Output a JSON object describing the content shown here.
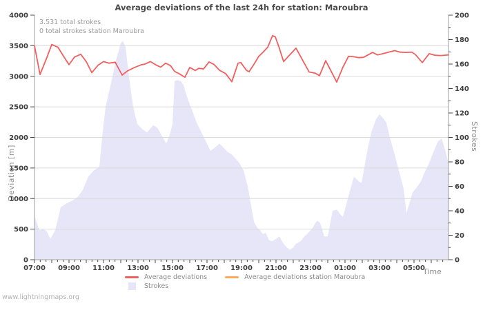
{
  "page": {
    "watermark": "www.lightningmaps.org"
  },
  "chart_data": {
    "type": "line+area",
    "title": "Average deviations of the last 24h for station: Maroubra",
    "annotations": [
      "3.531 total strokes",
      "0 total strokes station Maroubra"
    ],
    "x_axis": {
      "label": "Time",
      "start": "07:00",
      "hours_span": 24,
      "minor_tick_minutes": 20,
      "tick_hours": [
        0,
        2,
        4,
        6,
        8,
        10,
        12,
        14,
        16,
        18,
        20,
        22
      ],
      "tick_labels": [
        "07:00",
        "09:00",
        "11:00",
        "13:00",
        "15:00",
        "17:00",
        "19:00",
        "21:00",
        "23:00",
        "01:00",
        "03:00",
        "05:00"
      ]
    },
    "y_left": {
      "label": "Deviation [m]",
      "min": 0,
      "max": 4000,
      "tick_step": 500,
      "grid_step": 500
    },
    "y_right": {
      "label": "Strokes",
      "min": 0,
      "max": 200,
      "tick_step": 20,
      "minor_step": 10
    },
    "colors": {
      "grid": "#d9d9d9",
      "axis": "#9e9e9e",
      "tick": "#444444",
      "background": "#ffffff"
    },
    "series": [
      {
        "name": "Average deviations",
        "type": "line",
        "axis": "left",
        "color": "#f25f5f",
        "points": [
          [
            0,
            3500
          ],
          [
            0.32,
            3030
          ],
          [
            0.68,
            3280
          ],
          [
            1,
            3520
          ],
          [
            1.36,
            3475
          ],
          [
            1.68,
            3330
          ],
          [
            2,
            3190
          ],
          [
            2.32,
            3315
          ],
          [
            2.68,
            3360
          ],
          [
            3,
            3240
          ],
          [
            3.32,
            3060
          ],
          [
            3.68,
            3180
          ],
          [
            4,
            3240
          ],
          [
            4.32,
            3215
          ],
          [
            4.68,
            3230
          ],
          [
            5.08,
            3020
          ],
          [
            5.4,
            3090
          ],
          [
            5.8,
            3145
          ],
          [
            6.16,
            3185
          ],
          [
            6.4,
            3200
          ],
          [
            6.72,
            3240
          ],
          [
            7.08,
            3180
          ],
          [
            7.32,
            3150
          ],
          [
            7.6,
            3215
          ],
          [
            7.88,
            3175
          ],
          [
            8.12,
            3080
          ],
          [
            8.4,
            3040
          ],
          [
            8.72,
            2985
          ],
          [
            9,
            3145
          ],
          [
            9.32,
            3095
          ],
          [
            9.52,
            3130
          ],
          [
            9.8,
            3120
          ],
          [
            10.12,
            3235
          ],
          [
            10.4,
            3195
          ],
          [
            10.72,
            3100
          ],
          [
            11.08,
            3045
          ],
          [
            11.44,
            2910
          ],
          [
            11.8,
            3215
          ],
          [
            11.96,
            3225
          ],
          [
            12.28,
            3100
          ],
          [
            12.44,
            3075
          ],
          [
            12.72,
            3195
          ],
          [
            13,
            3325
          ],
          [
            13.2,
            3380
          ],
          [
            13.52,
            3475
          ],
          [
            13.8,
            3665
          ],
          [
            13.96,
            3645
          ],
          [
            14.2,
            3455
          ],
          [
            14.44,
            3240
          ],
          [
            14.76,
            3340
          ],
          [
            15.16,
            3460
          ],
          [
            15.6,
            3235
          ],
          [
            15.92,
            3070
          ],
          [
            16.28,
            3050
          ],
          [
            16.52,
            3010
          ],
          [
            16.88,
            3255
          ],
          [
            17.2,
            3080
          ],
          [
            17.52,
            2905
          ],
          [
            17.88,
            3150
          ],
          [
            18.2,
            3325
          ],
          [
            18.52,
            3320
          ],
          [
            18.8,
            3305
          ],
          [
            19.08,
            3310
          ],
          [
            19.4,
            3360
          ],
          [
            19.6,
            3390
          ],
          [
            19.88,
            3350
          ],
          [
            20.2,
            3370
          ],
          [
            20.52,
            3395
          ],
          [
            20.88,
            3420
          ],
          [
            21.2,
            3395
          ],
          [
            21.52,
            3390
          ],
          [
            21.88,
            3395
          ],
          [
            22.08,
            3355
          ],
          [
            22.48,
            3225
          ],
          [
            22.88,
            3370
          ],
          [
            23.2,
            3345
          ],
          [
            23.52,
            3340
          ],
          [
            23.8,
            3345
          ],
          [
            24,
            3350
          ]
        ]
      },
      {
        "name": "Average deviations station Maroubra",
        "type": "line",
        "axis": "left",
        "color": "#fbaa5f",
        "points": []
      },
      {
        "name": "Strokes",
        "type": "area",
        "axis": "right",
        "color": "#e6e6f8",
        "points": [
          [
            0,
            36
          ],
          [
            0.28,
            24
          ],
          [
            0.52,
            25
          ],
          [
            0.72,
            23
          ],
          [
            0.92,
            17
          ],
          [
            1.2,
            24
          ],
          [
            1.52,
            43
          ],
          [
            1.84,
            46
          ],
          [
            2.16,
            48
          ],
          [
            2.48,
            51
          ],
          [
            2.8,
            57
          ],
          [
            3.12,
            68
          ],
          [
            3.44,
            73
          ],
          [
            3.76,
            76
          ],
          [
            3.92,
            100
          ],
          [
            4.12,
            125
          ],
          [
            4.4,
            142
          ],
          [
            4.72,
            163
          ],
          [
            5,
            177
          ],
          [
            5.12,
            179
          ],
          [
            5.28,
            174
          ],
          [
            5.48,
            149
          ],
          [
            5.72,
            125
          ],
          [
            5.96,
            111
          ],
          [
            6.24,
            107
          ],
          [
            6.52,
            104
          ],
          [
            6.88,
            110
          ],
          [
            7.12,
            108
          ],
          [
            7.4,
            101
          ],
          [
            7.64,
            95
          ],
          [
            7.88,
            104
          ],
          [
            8,
            111
          ],
          [
            8.12,
            146
          ],
          [
            8.28,
            147
          ],
          [
            8.48,
            146
          ],
          [
            8.64,
            143
          ],
          [
            8.8,
            135
          ],
          [
            9,
            127
          ],
          [
            9.2,
            120
          ],
          [
            9.4,
            112
          ],
          [
            9.72,
            103
          ],
          [
            9.96,
            96
          ],
          [
            10.2,
            89
          ],
          [
            10.48,
            92
          ],
          [
            10.72,
            95
          ],
          [
            11,
            91
          ],
          [
            11.2,
            88
          ],
          [
            11.44,
            86
          ],
          [
            11.64,
            83
          ],
          [
            11.88,
            79
          ],
          [
            12.12,
            73
          ],
          [
            12.36,
            60
          ],
          [
            12.56,
            44
          ],
          [
            12.72,
            31
          ],
          [
            12.92,
            26
          ],
          [
            13.08,
            24
          ],
          [
            13.24,
            21
          ],
          [
            13.4,
            22
          ],
          [
            13.6,
            16
          ],
          [
            13.76,
            15
          ],
          [
            14,
            17
          ],
          [
            14.2,
            19
          ],
          [
            14.44,
            13
          ],
          [
            14.64,
            10
          ],
          [
            14.8,
            8
          ],
          [
            15,
            10
          ],
          [
            15.16,
            13
          ],
          [
            15.32,
            14
          ],
          [
            15.48,
            16
          ],
          [
            15.64,
            19
          ],
          [
            15.8,
            21
          ],
          [
            16,
            24
          ],
          [
            16.12,
            26
          ],
          [
            16.28,
            30
          ],
          [
            16.4,
            32
          ],
          [
            16.56,
            30
          ],
          [
            16.68,
            25
          ],
          [
            16.8,
            19
          ],
          [
            17,
            19
          ],
          [
            17.28,
            40
          ],
          [
            17.52,
            41
          ],
          [
            17.68,
            38
          ],
          [
            17.88,
            35
          ],
          [
            18.2,
            52
          ],
          [
            18.36,
            60
          ],
          [
            18.52,
            68
          ],
          [
            18.8,
            64
          ],
          [
            18.96,
            63
          ],
          [
            19.28,
            88
          ],
          [
            19.52,
            104
          ],
          [
            19.8,
            115
          ],
          [
            20,
            119
          ],
          [
            20.2,
            116
          ],
          [
            20.4,
            112
          ],
          [
            20.6,
            100
          ],
          [
            20.88,
            86
          ],
          [
            21.12,
            73
          ],
          [
            21.4,
            58
          ],
          [
            21.56,
            38
          ],
          [
            21.92,
            55
          ],
          [
            22.2,
            60
          ],
          [
            22.4,
            64
          ],
          [
            22.6,
            71
          ],
          [
            22.88,
            79
          ],
          [
            23.12,
            88
          ],
          [
            23.4,
            97
          ],
          [
            23.6,
            99
          ],
          [
            23.8,
            90
          ],
          [
            24,
            79
          ]
        ]
      }
    ]
  }
}
